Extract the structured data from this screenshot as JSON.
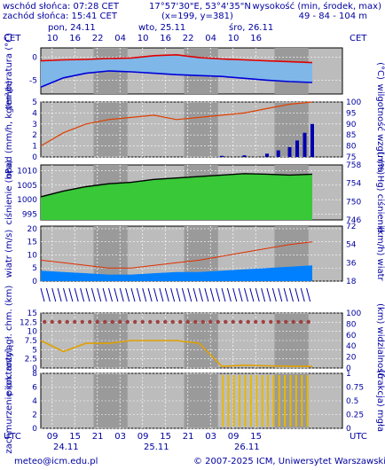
{
  "header": {
    "sunrise": "wschód słońca: 07:28 CET",
    "sunset": "zachód słońca: 15:41 CET",
    "lon_lat": "17°57'30\"E, 53°4'35\"N",
    "grid": "(x=199, y=381)",
    "height_label": "wysokość (min, środek, max)",
    "height_values": "49 - 84 - 104 m"
  },
  "footer": {
    "email": "meteo@icm.edu.pl",
    "copyright": "© 2007-2025 ICM, Uniwersytet Warszawski"
  },
  "colors": {
    "panel_bg": "#bcbcbc",
    "night_band": "#9a9a9a",
    "grid": "#ffffff",
    "temp_max": "#e00000",
    "temp_min": "#0000d8",
    "temp_fill": "#7fb8e8",
    "precip_line": "#e04000",
    "precip_bar": "#0000b0",
    "pressure_fill": "#38c838",
    "wind_fill": "#0080ff",
    "gust": "#e03000",
    "cloud_yellow": "#e8b800",
    "vis_orange": "#e0a000",
    "cond_red": "#a04040"
  },
  "chart_data": [
    {
      "type": "line",
      "panel": "temperature",
      "ylabel": "temperatura (°C)",
      "ylabel_right": "(°C)",
      "ylim": [
        -8,
        2
      ],
      "yticks": [
        -5,
        0
      ],
      "x_hours": [
        0,
        6,
        12,
        18,
        24,
        30,
        36,
        42,
        48,
        54,
        60,
        66,
        72
      ],
      "series": [
        {
          "name": "max",
          "values": [
            -0.8,
            -0.6,
            -0.5,
            -0.3,
            -0.2,
            0.3,
            0.5,
            -0.1,
            -0.4,
            -0.6,
            -0.8,
            -1.0,
            -1.2
          ]
        },
        {
          "name": "min",
          "values": [
            -6.5,
            -4.5,
            -3.5,
            -3.0,
            -3.2,
            -3.5,
            -3.8,
            -4.0,
            -4.2,
            -4.6,
            -5.0,
            -5.3,
            -5.5
          ]
        }
      ]
    },
    {
      "type": "bar",
      "panel": "precipitation",
      "ylabel": "opad (mm/h, kg/m²/h)",
      "ylabel_right": "wilgotność wzgl. (%)",
      "ylim": [
        0,
        5
      ],
      "yticks": [
        0,
        1,
        2,
        3,
        4,
        5
      ],
      "yticks_right": [
        75,
        80,
        85,
        90,
        95,
        100
      ],
      "humidity_x": [
        0,
        6,
        12,
        18,
        24,
        30,
        36,
        42,
        48,
        54,
        60,
        66,
        72
      ],
      "humidity": [
        80,
        86,
        90,
        92,
        93,
        94,
        92,
        93,
        94,
        95,
        97,
        99,
        100
      ],
      "precip_x": [
        48,
        54,
        60,
        63,
        66,
        68,
        70,
        72
      ],
      "precip": [
        0.1,
        0.15,
        0.3,
        0.6,
        0.9,
        1.5,
        2.2,
        3.0
      ]
    },
    {
      "type": "area",
      "panel": "pressure",
      "ylabel": "ciśnienie (hPa)",
      "ylabel_right": "(mm Hg) ciśnienie",
      "ylim": [
        993,
        1012
      ],
      "yticks": [
        995,
        1000,
        1005,
        1010
      ],
      "yticks_right": [
        746,
        750,
        754,
        758
      ],
      "x_hours": [
        0,
        6,
        12,
        18,
        24,
        30,
        36,
        42,
        48,
        54,
        60,
        66,
        72
      ],
      "values": [
        1001,
        1003,
        1004.5,
        1005.5,
        1006,
        1007,
        1007.5,
        1008,
        1008.5,
        1009,
        1008.8,
        1008.5,
        1008.8
      ]
    },
    {
      "type": "area",
      "panel": "wind",
      "ylabel": "wiatr (m/s)",
      "ylabel_right": "(km/h) wiatr",
      "ylim": [
        0,
        21
      ],
      "yticks": [
        0,
        5,
        10,
        15,
        20
      ],
      "yticks_right": [
        18,
        36,
        54,
        72
      ],
      "x_hours": [
        0,
        6,
        12,
        18,
        24,
        30,
        36,
        42,
        48,
        54,
        60,
        66,
        72
      ],
      "series": [
        {
          "name": "speed",
          "values": [
            4,
            3.5,
            3,
            2.5,
            2.5,
            3,
            3.5,
            3.5,
            4,
            4.5,
            5,
            5.5,
            6
          ]
        },
        {
          "name": "gust",
          "values": [
            8,
            7,
            6,
            5,
            5,
            6,
            7,
            8,
            9.5,
            11,
            12.5,
            14,
            15
          ]
        }
      ]
    },
    {
      "type": "line",
      "panel": "visibility",
      "ylabel": "pion. rozciągł. chm. (km)",
      "ylabel_right": "(km) widzialność",
      "ylim": [
        0,
        15
      ],
      "yticks": [
        0,
        2.5,
        5.0,
        7.5,
        10.0,
        12.5,
        15.0
      ],
      "yticks_right": [
        0,
        20,
        40,
        60,
        80,
        100
      ],
      "x_hours": [
        0,
        6,
        12,
        18,
        24,
        30,
        36,
        42,
        48,
        54,
        60,
        66,
        72
      ],
      "visibility": [
        50,
        30,
        45,
        45,
        50,
        50,
        50,
        45,
        3,
        5,
        4,
        3,
        3
      ]
    },
    {
      "type": "area",
      "panel": "clouds",
      "ylabel": "zachmurzenie (oktanty)",
      "ylabel_right": "(frakcja) mgła",
      "ylim": [
        0,
        8
      ],
      "yticks": [
        0,
        2,
        4,
        6,
        8
      ],
      "yticks_right": [
        0,
        0.25,
        0.5,
        0.75,
        1
      ]
    }
  ],
  "axes": {
    "cet_label": "CET",
    "utc_label": "UTC",
    "days_top": [
      {
        "label": "pon, 24.11",
        "hour": 0
      },
      {
        "label": "wto, 25.11",
        "hour": 24
      },
      {
        "label": "śro, 26.11",
        "hour": 48
      }
    ],
    "hours_top": [
      "10",
      "16",
      "22",
      "04",
      "10",
      "16",
      "22",
      "04",
      "10",
      "16"
    ],
    "hours_bottom": [
      "09",
      "15",
      "21",
      "03",
      "09",
      "15",
      "21",
      "03",
      "09",
      "15"
    ],
    "days_bottom": [
      {
        "label": "24.11",
        "hour": 0
      },
      {
        "label": "25.11",
        "hour": 24
      },
      {
        "label": "26.11",
        "hour": 48
      }
    ]
  }
}
